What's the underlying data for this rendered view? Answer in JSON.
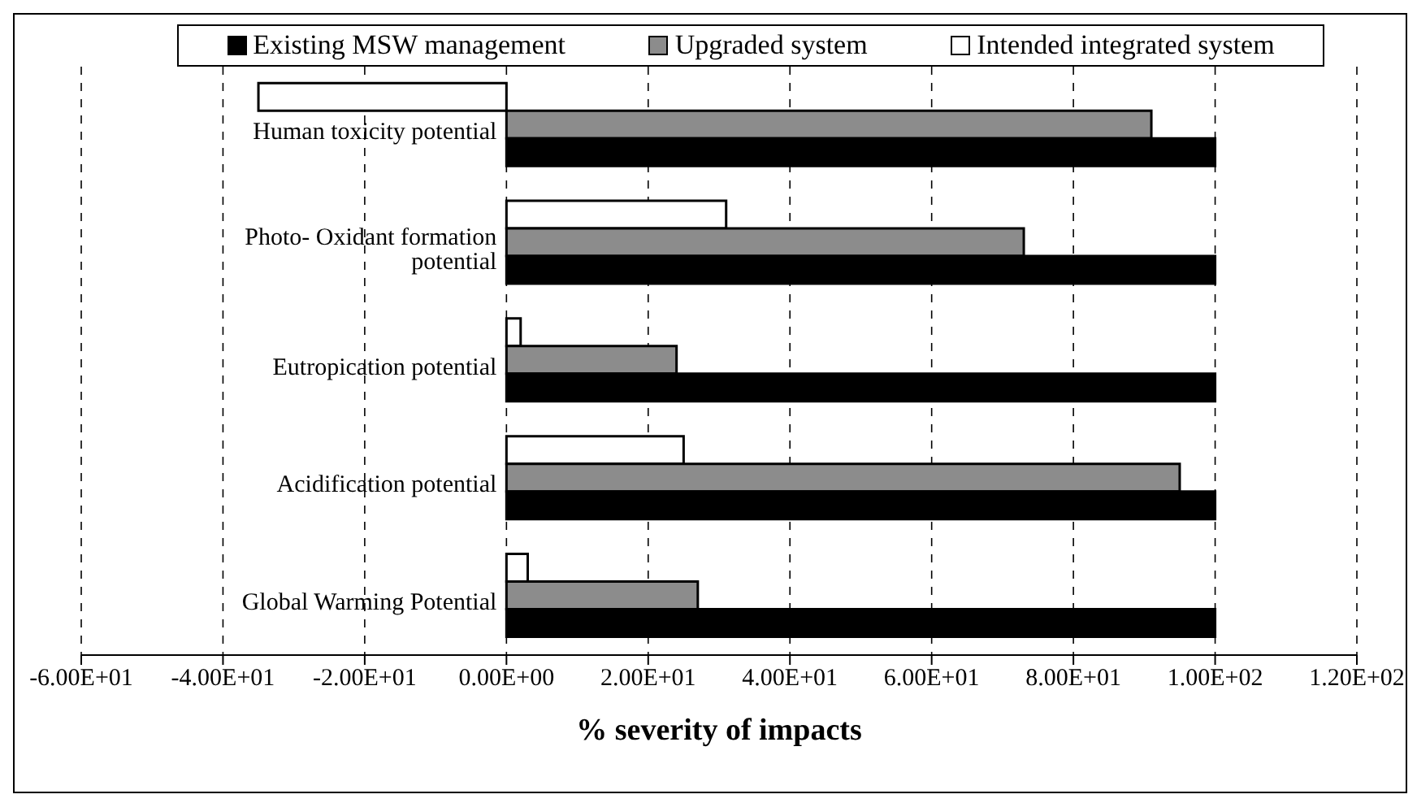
{
  "chart_data": {
    "type": "bar",
    "orientation": "horizontal",
    "xlabel": "% severity of impacts",
    "categories": [
      "Human toxicity potential",
      "Photo- Oxidant formation potential",
      "Eutropication potential",
      "Acidification potential",
      "Global Warming Potential"
    ],
    "series": [
      {
        "name": "Existing MSW management",
        "color": "#000000",
        "values": [
          100,
          100,
          100,
          100,
          100
        ]
      },
      {
        "name": "Upgraded system",
        "color": "#8c8c8c",
        "values": [
          91,
          73,
          24,
          95,
          27
        ]
      },
      {
        "name": "Intended integrated system",
        "color": "#ffffff",
        "values": [
          -35,
          31,
          2,
          25,
          3
        ]
      }
    ],
    "xlim": [
      -60,
      120
    ],
    "xticks": [
      {
        "value": -60,
        "label": "-6.00E+01"
      },
      {
        "value": -40,
        "label": "-4.00E+01"
      },
      {
        "value": -20,
        "label": "-2.00E+01"
      },
      {
        "value": 0,
        "label": "0.00E+00"
      },
      {
        "value": 20,
        "label": "2.00E+01"
      },
      {
        "value": 40,
        "label": "4.00E+01"
      },
      {
        "value": 60,
        "label": "6.00E+01"
      },
      {
        "value": 80,
        "label": "8.00E+01"
      },
      {
        "value": 100,
        "label": "1.00E+02"
      },
      {
        "value": 120,
        "label": "1.20E+02"
      }
    ],
    "grid": "x",
    "legend": "top"
  }
}
